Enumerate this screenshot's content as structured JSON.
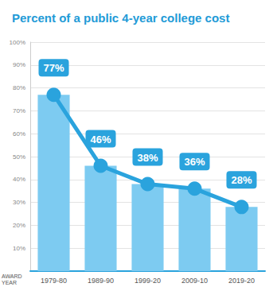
{
  "chart_data": {
    "type": "bar",
    "title": "Percent of a public 4-year college cost",
    "xlabel": "AWARD YEAR",
    "categories": [
      "1979-80",
      "1989-90",
      "1999-20",
      "2009-10",
      "2019-20"
    ],
    "series": [
      {
        "type": "bar",
        "color": "#7dcbf1",
        "values": [
          77,
          46,
          38,
          36,
          28
        ]
      },
      {
        "type": "line",
        "color": "#2aa3dd",
        "marker": "circle",
        "data_labels": true,
        "values": [
          77,
          46,
          38,
          36,
          28
        ],
        "value_labels": [
          "77%",
          "46%",
          "38%",
          "36%",
          "28%"
        ]
      }
    ],
    "ylim": [
      0,
      100
    ],
    "yticks": [
      {
        "value": 10,
        "label": "10%"
      },
      {
        "value": 20,
        "label": "20%"
      },
      {
        "value": 30,
        "label": "30%"
      },
      {
        "value": 40,
        "label": "40%"
      },
      {
        "value": 50,
        "label": "50%"
      },
      {
        "value": 60,
        "label": "60%"
      },
      {
        "value": 70,
        "label": "70%"
      },
      {
        "value": 80,
        "label": "80%"
      },
      {
        "value": 90,
        "label": "90%"
      },
      {
        "value": 100,
        "label": "100%"
      }
    ],
    "grid": true
  }
}
